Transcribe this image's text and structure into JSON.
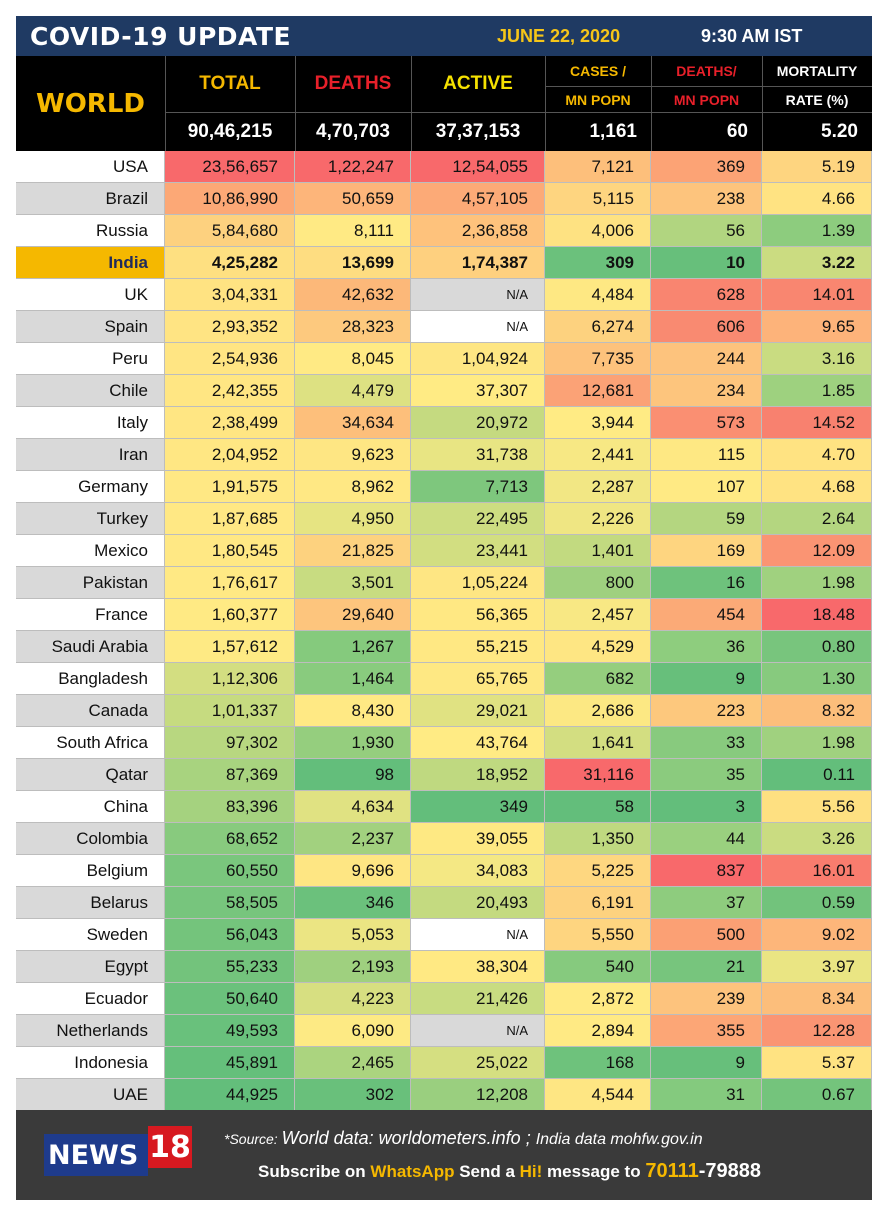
{
  "header": {
    "title": "COVID-19 UPDATE",
    "date": "JUNE 22, 2020",
    "time": "9:30 AM IST",
    "world_label": "WORLD",
    "col_total": "TOTAL",
    "col_deaths": "DEATHS",
    "col_active": "ACTIVE",
    "col_cases_1": "CASES /",
    "col_cases_2": "MN POPN",
    "col_deathsmn_1": "DEATHS/",
    "col_deathsmn_2": "MN POPN",
    "col_mort_1": "MORTALITY",
    "col_mort_2": "RATE (%)"
  },
  "world_totals": {
    "total": "90,46,215",
    "deaths": "4,70,703",
    "active": "37,37,153",
    "cases_mn": "1,161",
    "deaths_mn": "60",
    "mortality": "5.20"
  },
  "colors": {
    "title_bg": "#1f3a63",
    "header_bg": "#000000",
    "world_gold": "#f5b800",
    "total_header": "#f5b800",
    "deaths_header": "#e8202a",
    "active_header": "#f5e100",
    "cases_header": "#f5b800",
    "deathsmn_header": "#e8202a",
    "mortality_header": "#ffffff",
    "india_highlight": "#f5b800",
    "footer_bg": "#3a3a3a",
    "logo_blue": "#1e3b8c",
    "logo_red": "#d71920"
  },
  "rows": [
    {
      "country": "USA",
      "total": "23,56,657",
      "deaths": "1,22,247",
      "active": "12,54,055",
      "cases_mn": "7,121",
      "deaths_mn": "369",
      "mortality": "5.19",
      "bg": [
        "#f8696b",
        "#f8696b",
        "#f8696b",
        "#fdbf7b",
        "#fca375",
        "#fed580"
      ]
    },
    {
      "country": "Brazil",
      "total": "10,86,990",
      "deaths": "50,659",
      "active": "4,57,105",
      "cases_mn": "5,115",
      "deaths_mn": "238",
      "mortality": "4.66",
      "bg": [
        "#fca876",
        "#fdb57a",
        "#fcaa77",
        "#fed580",
        "#fdc47d",
        "#ffe382"
      ]
    },
    {
      "country": "Russia",
      "total": "5,84,680",
      "deaths": "8,111",
      "active": "2,36,858",
      "cases_mn": "4,006",
      "deaths_mn": "56",
      "mortality": "1.39",
      "bg": [
        "#fdd17f",
        "#ffea84",
        "#fec27c",
        "#fee282",
        "#b1d580",
        "#8dcc7e"
      ]
    },
    {
      "country": "India",
      "total": "4,25,282",
      "deaths": "13,699",
      "active": "1,74,387",
      "cases_mn": "309",
      "deaths_mn": "10",
      "mortality": "3.22",
      "bg": [
        "#fee081",
        "#fedd81",
        "#fed07f",
        "#6bc17c",
        "#67bf7b",
        "#cbdc81"
      ]
    },
    {
      "country": "UK",
      "total": "3,04,331",
      "deaths": "42,632",
      "active": "N/A",
      "cases_mn": "4,484",
      "deaths_mn": "628",
      "mortality": "14.01",
      "bg": [
        "#ffe382",
        "#fcb879",
        "#d9d9d9",
        "#fee883",
        "#f98570",
        "#f98670"
      ],
      "na": true
    },
    {
      "country": "Spain",
      "total": "2,93,352",
      "deaths": "28,323",
      "active": "N/A",
      "cases_mn": "6,274",
      "deaths_mn": "606",
      "mortality": "9.65",
      "bg": [
        "#ffe483",
        "#fdc97e",
        "#ffffff",
        "#fdd27f",
        "#f98a71",
        "#fdb37a"
      ],
      "na": true
    },
    {
      "country": "Peru",
      "total": "2,54,936",
      "deaths": "8,045",
      "active": "1,04,924",
      "cases_mn": "7,735",
      "deaths_mn": "244",
      "mortality": "3.16",
      "bg": [
        "#ffe583",
        "#ffea84",
        "#fee683",
        "#fdc27c",
        "#fdc37d",
        "#c9dc81"
      ]
    },
    {
      "country": "Chile",
      "total": "2,42,355",
      "deaths": "4,479",
      "active": "37,307",
      "cases_mn": "12,681",
      "deaths_mn": "234",
      "mortality": "1.85",
      "bg": [
        "#ffe683",
        "#dde182",
        "#ffeb84",
        "#fba276",
        "#fdc57d",
        "#9ed17f"
      ]
    },
    {
      "country": "Italy",
      "total": "2,38,499",
      "deaths": "34,634",
      "active": "20,972",
      "cases_mn": "3,944",
      "deaths_mn": "573",
      "mortality": "14.52",
      "bg": [
        "#ffe683",
        "#fdbf7b",
        "#c5da80",
        "#ffeb84",
        "#fa8f72",
        "#f8816f"
      ]
    },
    {
      "country": "Iran",
      "total": "2,04,952",
      "deaths": "9,623",
      "active": "31,738",
      "cases_mn": "2,441",
      "deaths_mn": "115",
      "mortality": "4.70",
      "bg": [
        "#ffe783",
        "#fee683",
        "#e8e583",
        "#f7e884",
        "#fee883",
        "#ffe382"
      ]
    },
    {
      "country": "Germany",
      "total": "1,91,575",
      "deaths": "8,962",
      "active": "7,713",
      "cases_mn": "2,287",
      "deaths_mn": "107",
      "mortality": "4.68",
      "bg": [
        "#ffe884",
        "#ffe884",
        "#7ec77d",
        "#f2e784",
        "#ffea84",
        "#ffe382"
      ]
    },
    {
      "country": "Turkey",
      "total": "1,87,685",
      "deaths": "4,950",
      "active": "22,495",
      "cases_mn": "2,226",
      "deaths_mn": "59",
      "mortality": "2.64",
      "bg": [
        "#ffe884",
        "#e6e482",
        "#cddd81",
        "#efe683",
        "#b4d680",
        "#b4d680"
      ]
    },
    {
      "country": "Mexico",
      "total": "1,80,545",
      "deaths": "21,825",
      "active": "23,441",
      "cases_mn": "1,401",
      "deaths_mn": "169",
      "mortality": "12.09",
      "bg": [
        "#ffe884",
        "#fdd27f",
        "#d2de81",
        "#c2da80",
        "#fed580",
        "#fa9473"
      ]
    },
    {
      "country": "Pakistan",
      "total": "1,76,617",
      "deaths": "3,501",
      "active": "1,05,224",
      "cases_mn": "800",
      "deaths_mn": "16",
      "mortality": "1.98",
      "bg": [
        "#ffe984",
        "#c8dc81",
        "#fee683",
        "#9fd07f",
        "#6ec27c",
        "#a0d17f"
      ]
    },
    {
      "country": "France",
      "total": "1,60,377",
      "deaths": "29,640",
      "active": "56,365",
      "cases_mn": "2,457",
      "deaths_mn": "454",
      "mortality": "18.48",
      "bg": [
        "#ffea84",
        "#fdc57d",
        "#ffe883",
        "#f8e884",
        "#fbaa77",
        "#f8696b"
      ]
    },
    {
      "country": "Saudi Arabia",
      "total": "1,57,612",
      "deaths": "1,267",
      "active": "55,215",
      "cases_mn": "4,529",
      "deaths_mn": "36",
      "mortality": "0.80",
      "bg": [
        "#feea84",
        "#85ca7d",
        "#ffe883",
        "#fee683",
        "#8ecd7e",
        "#78c57d"
      ]
    },
    {
      "country": "Bangladesh",
      "total": "1,12,306",
      "deaths": "1,464",
      "active": "65,765",
      "cases_mn": "682",
      "deaths_mn": "9",
      "mortality": "1.30",
      "bg": [
        "#d3de81",
        "#89cb7e",
        "#fee883",
        "#95ce7e",
        "#67bf7b",
        "#87ca7e"
      ]
    },
    {
      "country": "Canada",
      "total": "1,01,337",
      "deaths": "8,430",
      "active": "29,021",
      "cases_mn": "2,686",
      "deaths_mn": "223",
      "mortality": "8.32",
      "bg": [
        "#c6db80",
        "#ffe984",
        "#e0e282",
        "#fce883",
        "#fdc87d",
        "#fcbe7b"
      ]
    },
    {
      "country": "South Africa",
      "total": "97,302",
      "deaths": "1,930",
      "active": "43,764",
      "cases_mn": "1,641",
      "deaths_mn": "33",
      "mortality": "1.98",
      "bg": [
        "#b8d780",
        "#95ce7e",
        "#ffeb84",
        "#d3de81",
        "#88ca7e",
        "#a0d17f"
      ]
    },
    {
      "country": "Qatar",
      "total": "87,369",
      "deaths": "98",
      "active": "18,952",
      "cases_mn": "31,116",
      "deaths_mn": "35",
      "mortality": "0.11",
      "bg": [
        "#a8d37f",
        "#63be7b",
        "#bfd980",
        "#f8696b",
        "#8bcb7e",
        "#63be7b"
      ]
    },
    {
      "country": "China",
      "total": "83,396",
      "deaths": "4,634",
      "active": "349",
      "cases_mn": "58",
      "deaths_mn": "3",
      "mortality": "5.56",
      "bg": [
        "#a5d27f",
        "#e0e282",
        "#63be7b",
        "#63be7b",
        "#63be7b",
        "#fee081"
      ]
    },
    {
      "country": "Colombia",
      "total": "68,652",
      "deaths": "2,237",
      "active": "39,055",
      "cases_mn": "1,350",
      "deaths_mn": "44",
      "mortality": "3.26",
      "bg": [
        "#88ca7e",
        "#a2d17f",
        "#fee983",
        "#bfd980",
        "#9ad07f",
        "#cadc81"
      ]
    },
    {
      "country": "Belgium",
      "total": "60,550",
      "deaths": "9,696",
      "active": "34,083",
      "cases_mn": "5,225",
      "deaths_mn": "837",
      "mortality": "16.01",
      "bg": [
        "#7ac67d",
        "#fee683",
        "#f4e884",
        "#fed780",
        "#f8696b",
        "#f97c6e"
      ]
    },
    {
      "country": "Belarus",
      "total": "58,505",
      "deaths": "346",
      "active": "20,493",
      "cases_mn": "6,191",
      "deaths_mn": "37",
      "mortality": "0.59",
      "bg": [
        "#77c57d",
        "#6bc17c",
        "#c4da80",
        "#fdd27f",
        "#8ecc7e",
        "#72c37c"
      ]
    },
    {
      "country": "Sweden",
      "total": "56,043",
      "deaths": "5,053",
      "active": "N/A",
      "cases_mn": "5,550",
      "deaths_mn": "500",
      "mortality": "9.02",
      "bg": [
        "#74c47c",
        "#ebe583",
        "#ffffff",
        "#fed580",
        "#fba074",
        "#fdb67a"
      ],
      "na": true
    },
    {
      "country": "Egypt",
      "total": "55,233",
      "deaths": "2,193",
      "active": "38,304",
      "cases_mn": "540",
      "deaths_mn": "21",
      "mortality": "3.97",
      "bg": [
        "#73c37c",
        "#9fd07f",
        "#ffe983",
        "#86ca7e",
        "#77c57d",
        "#eae583"
      ]
    },
    {
      "country": "Ecuador",
      "total": "50,640",
      "deaths": "4,223",
      "active": "21,426",
      "cases_mn": "2,872",
      "deaths_mn": "239",
      "mortality": "8.34",
      "bg": [
        "#6bc17c",
        "#d7df81",
        "#c8dc81",
        "#ffea84",
        "#fdc37d",
        "#fcbe7b"
      ]
    },
    {
      "country": "Netherlands",
      "total": "49,593",
      "deaths": "6,090",
      "active": "N/A",
      "cases_mn": "2,894",
      "deaths_mn": "355",
      "mortality": "12.28",
      "bg": [
        "#69c17c",
        "#fdea84",
        "#d9d9d9",
        "#ffea84",
        "#fca676",
        "#fa9573"
      ],
      "na": true
    },
    {
      "country": "Indonesia",
      "total": "45,891",
      "deaths": "2,465",
      "active": "25,022",
      "cases_mn": "168",
      "deaths_mn": "9",
      "mortality": "5.37",
      "bg": [
        "#65bf7b",
        "#abd47f",
        "#d5df81",
        "#6ec27c",
        "#67bf7b",
        "#ffe382"
      ]
    },
    {
      "country": "UAE",
      "total": "44,925",
      "deaths": "302",
      "active": "12,208",
      "cases_mn": "4,544",
      "deaths_mn": "31",
      "mortality": "0.67",
      "bg": [
        "#63be7b",
        "#69c07b",
        "#9acf7f",
        "#fee683",
        "#84ca7e",
        "#74c47c"
      ]
    }
  ],
  "row_label_bg": [
    "#ffffff",
    "#d9d9d9"
  ],
  "footer": {
    "logo_text": "NEWS",
    "logo_num": "18",
    "source_prefix": "*Source: ",
    "source_world": "World data: worldometers.info ; ",
    "source_india": "India data mohfw.gov.in",
    "subscribe_1": "Subscribe on ",
    "subscribe_whatsapp": "WhatsApp",
    "subscribe_2": " Send a ",
    "subscribe_hi": "Hi!",
    "subscribe_3": " message to ",
    "subscribe_num1": "70111",
    "subscribe_dash": "-",
    "subscribe_num2": "79888"
  }
}
